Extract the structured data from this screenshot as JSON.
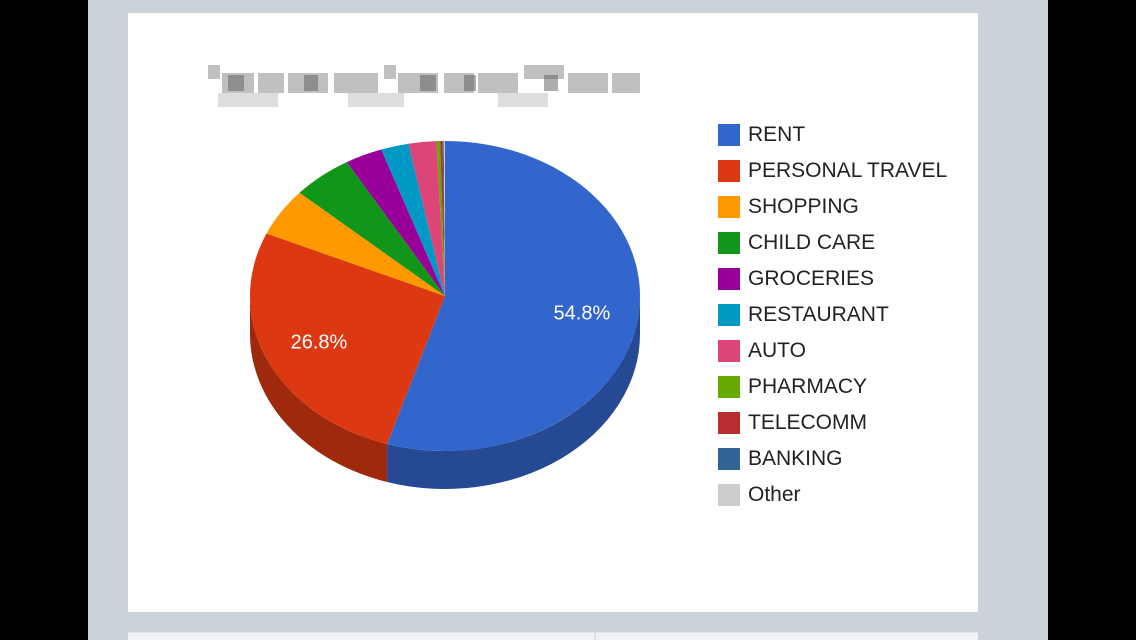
{
  "chart_data": {
    "type": "pie",
    "style": "3d",
    "title": "",
    "categories": [
      "RENT",
      "PERSONAL TRAVEL",
      "SHOPPING",
      "CHILD CARE",
      "GROCERIES",
      "RESTAURANT",
      "AUTO",
      "PHARMACY",
      "TELECOMM",
      "BANKING",
      "Other"
    ],
    "values": [
      54.8,
      26.8,
      5.0,
      5.0,
      3.1,
      2.3,
      2.3,
      0.3,
      0.2,
      0.1,
      0.1
    ],
    "colors": [
      "#3366cc",
      "#dc3912",
      "#ff9900",
      "#109618",
      "#990099",
      "#0099c6",
      "#dd4477",
      "#66aa00",
      "#b82e2e",
      "#316395",
      "#cccccc"
    ],
    "data_labels": [
      "54.8%",
      "26.8%",
      "",
      "",
      "",
      "",
      "",
      "",
      "",
      "",
      ""
    ],
    "legend_position": "right"
  }
}
